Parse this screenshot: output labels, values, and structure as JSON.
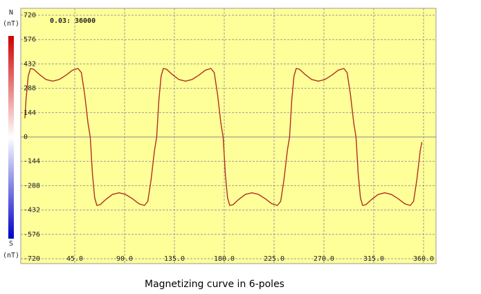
{
  "chart_data": {
    "type": "line",
    "caption": "Magnetizing curve in 6-poles",
    "readout": [
      "0.03:",
      "36000"
    ],
    "legend_top": [
      "N",
      "(nT)"
    ],
    "legend_bottom": [
      "S",
      "(nT)"
    ],
    "series": [
      {
        "color": "#b03020",
        "x": [
          0,
          1,
          3,
          5,
          8,
          13,
          19,
          25,
          31,
          37,
          43,
          48,
          51,
          54,
          57,
          59,
          61,
          63,
          65,
          68,
          73,
          79,
          85,
          91,
          97,
          103,
          108,
          111,
          114,
          117,
          119,
          121,
          123,
          125,
          128,
          133,
          139,
          145,
          151,
          157,
          163,
          168,
          171,
          174,
          177,
          179,
          181,
          183,
          185,
          188,
          193,
          199,
          205,
          211,
          217,
          223,
          228,
          231,
          234,
          237,
          239,
          241,
          243,
          245,
          248,
          253,
          259,
          265,
          271,
          277,
          283,
          288,
          291,
          294,
          297,
          299,
          301,
          303,
          305,
          308,
          313,
          319,
          325,
          331,
          337,
          343,
          348,
          351,
          354,
          357,
          358.5
        ],
        "values": [
          110,
          220,
          360,
          405,
          400,
          370,
          340,
          330,
          340,
          365,
          395,
          405,
          380,
          250,
          80,
          0,
          -220,
          -360,
          -405,
          -400,
          -370,
          -340,
          -330,
          -340,
          -365,
          -395,
          -405,
          -380,
          -250,
          -80,
          0,
          220,
          360,
          405,
          400,
          370,
          340,
          330,
          340,
          365,
          395,
          405,
          380,
          250,
          80,
          0,
          -220,
          -360,
          -405,
          -400,
          -370,
          -340,
          -330,
          -340,
          -365,
          -395,
          -405,
          -380,
          -250,
          -80,
          0,
          220,
          360,
          405,
          400,
          370,
          340,
          330,
          340,
          365,
          395,
          405,
          380,
          250,
          80,
          0,
          -220,
          -360,
          -405,
          -400,
          -370,
          -340,
          -330,
          -340,
          -365,
          -395,
          -405,
          -380,
          -250,
          -80,
          -30
        ]
      }
    ],
    "xlim": [
      0,
      360
    ],
    "xticks": [
      {
        "value": 45,
        "label": "45.0"
      },
      {
        "value": 90,
        "label": "90.0"
      },
      {
        "value": 135,
        "label": "135.0"
      },
      {
        "value": 180,
        "label": "180.0"
      },
      {
        "value": 225,
        "label": "225.0"
      },
      {
        "value": 270,
        "label": "270.0"
      },
      {
        "value": 315,
        "label": "315.0"
      },
      {
        "value": 360,
        "label": "360.0"
      }
    ],
    "ylim": [
      -720,
      720
    ],
    "yticks": [
      -720,
      -576,
      -432,
      -288,
      -144,
      0,
      144,
      288,
      432,
      576,
      720
    ],
    "grid": true
  }
}
